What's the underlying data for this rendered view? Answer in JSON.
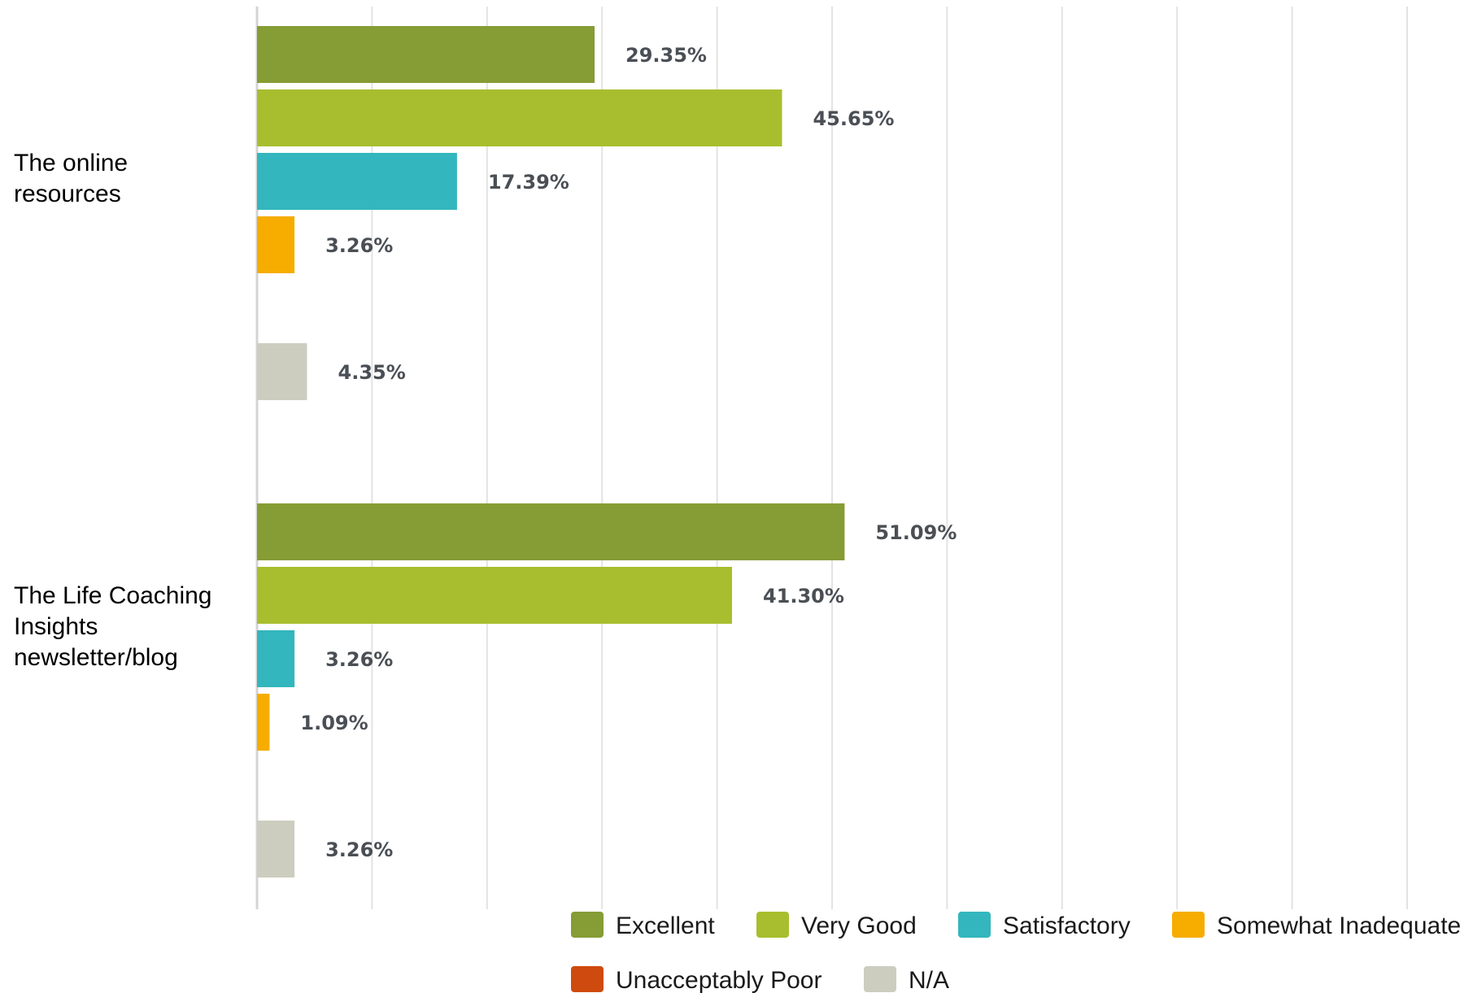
{
  "chart_data": {
    "type": "bar",
    "orientation": "horizontal",
    "title": "",
    "xlabel": "",
    "ylabel": "",
    "xlim": [
      0,
      100
    ],
    "grid": true,
    "legend_position": "bottom",
    "value_suffix": "%",
    "categories": [
      {
        "lines": [
          "The online",
          "resources"
        ]
      },
      {
        "lines": [
          "The Life Coaching",
          "Insights",
          "newsletter/blog"
        ]
      }
    ],
    "series": [
      {
        "name": "Excellent",
        "color": "#869c35",
        "values": [
          29.35,
          51.09
        ]
      },
      {
        "name": "Very Good",
        "color": "#a8be2e",
        "values": [
          45.65,
          41.3
        ]
      },
      {
        "name": "Satisfactory",
        "color": "#33b6bd",
        "values": [
          17.39,
          3.26
        ]
      },
      {
        "name": "Somewhat Inadequate",
        "color": "#f6ad00",
        "values": [
          3.26,
          1.09
        ]
      },
      {
        "name": "Unacceptably Poor",
        "color": "#ce4a0e",
        "values": [
          0,
          0
        ]
      },
      {
        "name": "N/A",
        "color": "#cdcdbf",
        "values": [
          4.35,
          3.26
        ]
      }
    ],
    "data_labels": [
      [
        "29.35%",
        "51.09%"
      ],
      [
        "45.65%",
        "41.30%"
      ],
      [
        "17.39%",
        "3.26%"
      ],
      [
        "3.26%",
        "1.09%"
      ],
      [
        "",
        ""
      ],
      [
        "4.35%",
        "3.26%"
      ]
    ]
  }
}
